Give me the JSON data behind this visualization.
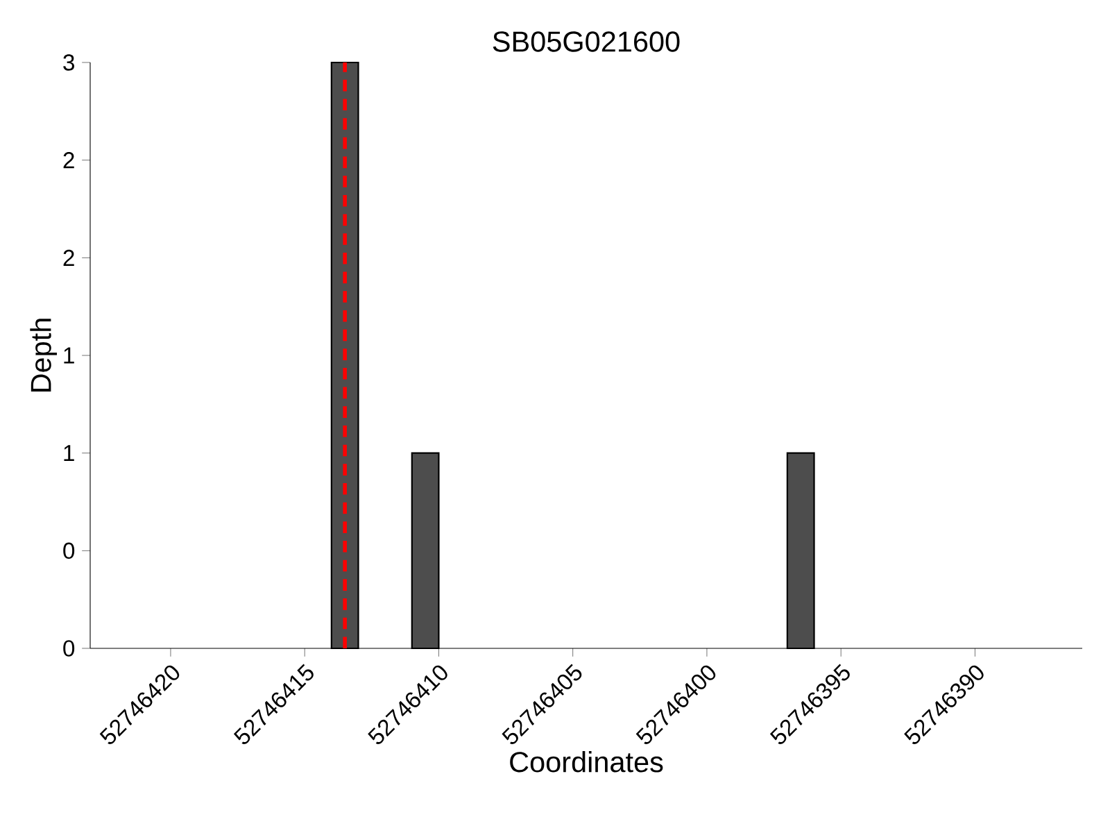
{
  "chart_data": {
    "type": "bar",
    "title": "SB05G021600",
    "xlabel": "Coordinates",
    "ylabel": "Depth",
    "x": [
      52746413.5,
      52746410.5,
      52746396.5
    ],
    "values": [
      3,
      1,
      1
    ],
    "color": "#4d4d4d",
    "xlim": [
      52746423,
      52746386
    ],
    "xticks": [
      52746420,
      52746415,
      52746410,
      52746405,
      52746400,
      52746395,
      52746390
    ],
    "ylim": [
      0,
      3
    ],
    "yticks": [
      0,
      {
        "value": 0.5,
        "label": "0"
      },
      1,
      {
        "value": 1.5,
        "label": "1"
      },
      2,
      {
        "value": 2.5,
        "label": "2"
      },
      3
    ],
    "ref_lines": [
      {
        "axis": "x",
        "value": 52746413.5,
        "color": "#ff0000",
        "line_style": "dashed"
      }
    ],
    "grid": false
  }
}
